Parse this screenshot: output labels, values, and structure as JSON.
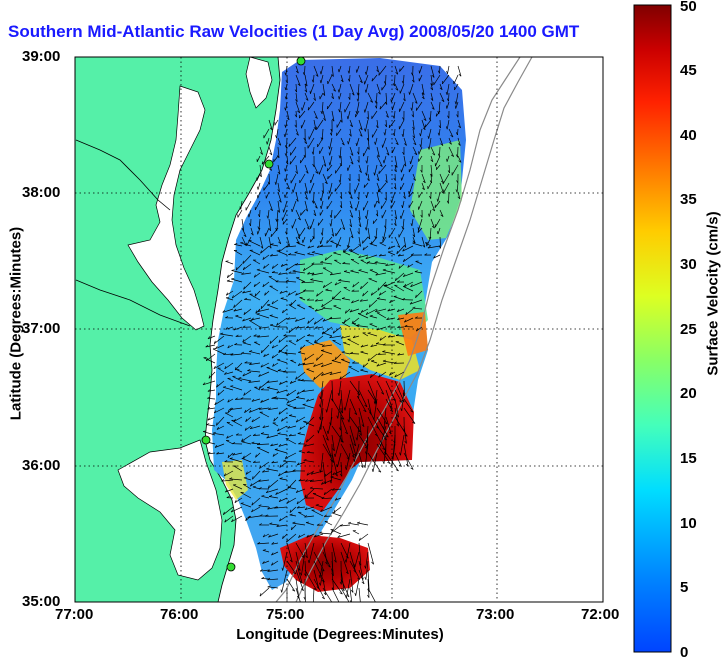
{
  "title": "Southern Mid-Atlantic Raw Velocities (1 Day Avg) 2008/05/20 1400 GMT",
  "map": {
    "xlabel": "Longitude (Degrees:Minutes)",
    "ylabel": "Latitude (Degrees:Minutes)",
    "lon_ticks": [
      "77:00",
      "76:00",
      "75:00",
      "74:00",
      "73:00",
      "72:00"
    ],
    "lat_ticks": [
      "39:00",
      "38:00",
      "37:00",
      "36:00",
      "35:00"
    ],
    "lon_range": [
      -77,
      -72
    ],
    "lat_range": [
      35,
      39
    ],
    "grid": true,
    "land_color": "#55f0a8",
    "arrow_color": "#000000"
  },
  "colorbar": {
    "label": "Surface Velocity (cm/s)",
    "ticks": [
      "0",
      "5",
      "10",
      "15",
      "20",
      "25",
      "30",
      "35",
      "40",
      "45",
      "50"
    ],
    "range": [
      0,
      50
    ],
    "colormap": "jet"
  }
}
